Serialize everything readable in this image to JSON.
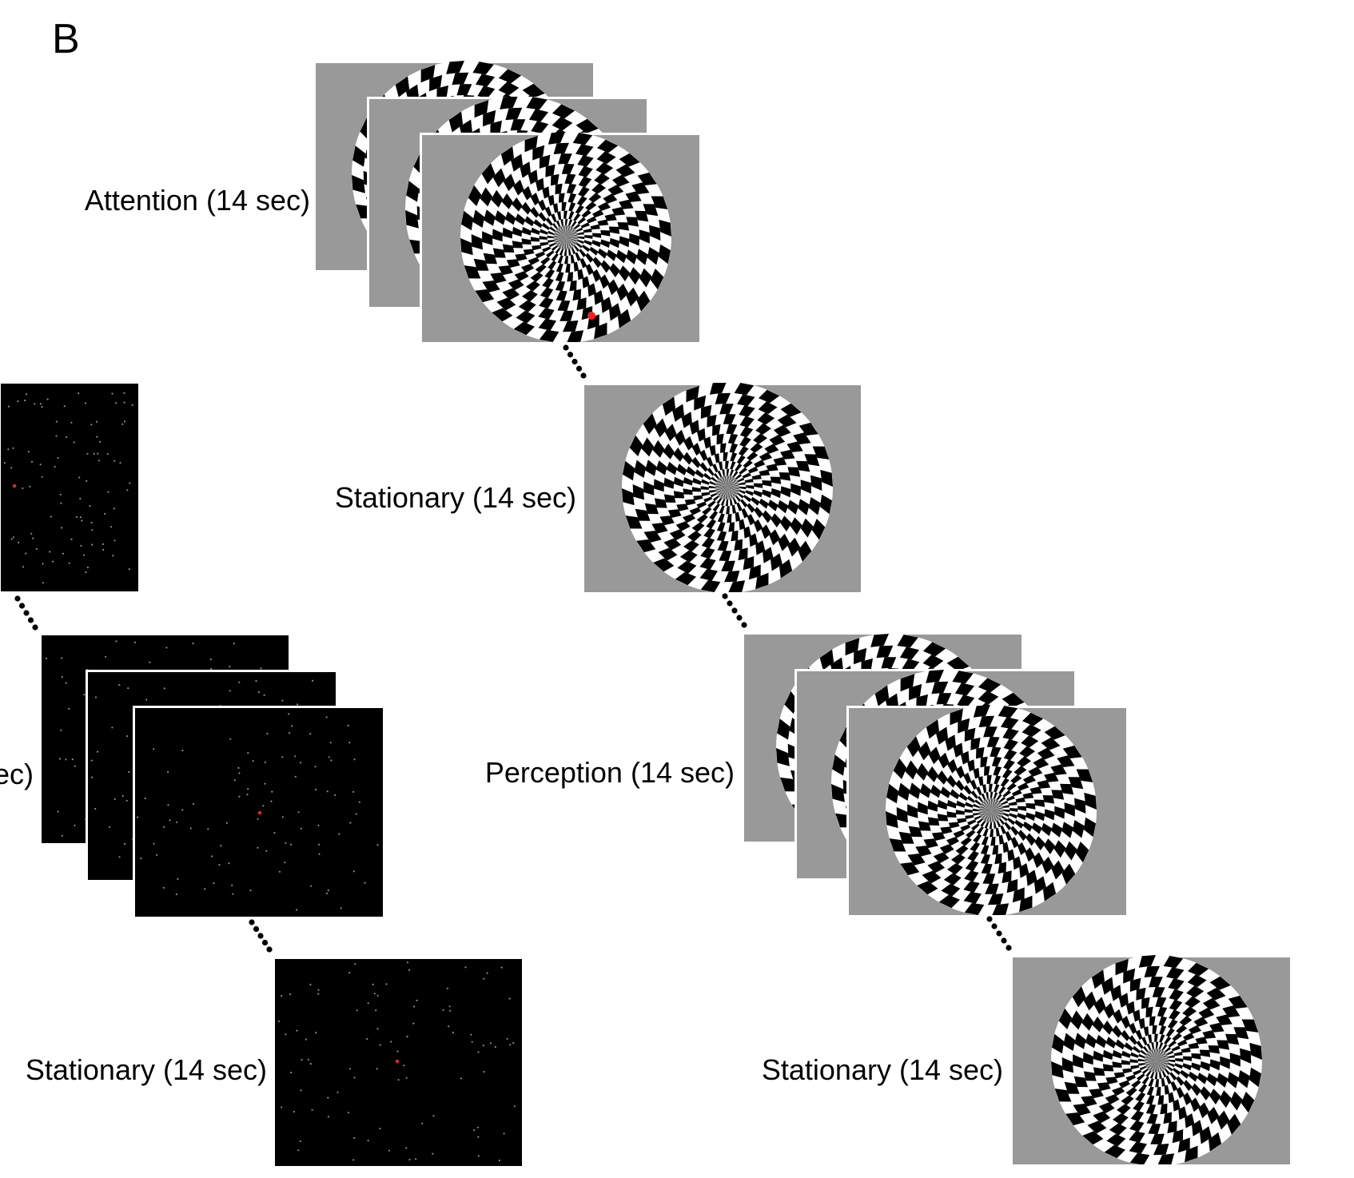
{
  "panel_letter": "B",
  "labels": {
    "attention": "Attention (14 sec)",
    "stationary_top": "Stationary (14 sec)",
    "perception": "Perception (14 sec)",
    "stationary_bottom_right": "Stationary (14 sec)",
    "stationary_bottom_left": "Stationary (14 sec)",
    "cut_left": "ec)"
  },
  "colors": {
    "gray_background": "#999999",
    "checker_dark": "#000000",
    "checker_light": "#ffffff",
    "dot_field_background": "#000000",
    "dot": "#bbbbbb",
    "fixation": "#ff2020"
  },
  "stimuli": {
    "checkerboard": "radial-checkerboard",
    "dot_field": "random-dot-field"
  }
}
